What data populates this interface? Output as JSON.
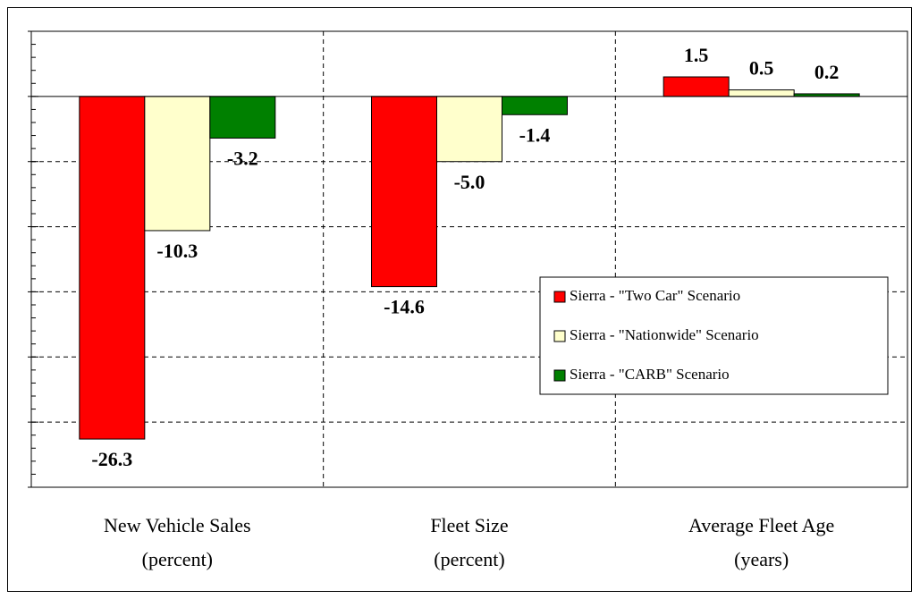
{
  "chart_data": {
    "type": "bar",
    "categories": [
      [
        "New Vehicle Sales",
        "(percent)"
      ],
      [
        "Fleet Size",
        "(percent)"
      ],
      [
        "Average Fleet Age",
        "(years)"
      ]
    ],
    "series": [
      {
        "name": "Sierra - \"Two Car\" Scenario",
        "color": "#ff0000",
        "values": [
          -26.3,
          -14.6,
          1.5
        ],
        "value_labels": [
          "-26.3",
          "-14.6",
          "1.5"
        ]
      },
      {
        "name": "Sierra - \"Nationwide\" Scenario",
        "color": "#ffffcc",
        "values": [
          -10.3,
          -5.0,
          0.5
        ],
        "value_labels": [
          "-10.3",
          "-5.0",
          "0.5"
        ]
      },
      {
        "name": "Sierra - \"CARB\" Scenario",
        "color": "#008000",
        "values": [
          -3.2,
          -1.4,
          0.2
        ],
        "value_labels": [
          "-3.2",
          "-1.4",
          "0.2"
        ]
      }
    ],
    "ylim": [
      -30,
      5
    ],
    "yticks": [
      -30,
      -25,
      -20,
      -15,
      -10,
      -5,
      0,
      5
    ],
    "grid": true,
    "legend": "right"
  }
}
